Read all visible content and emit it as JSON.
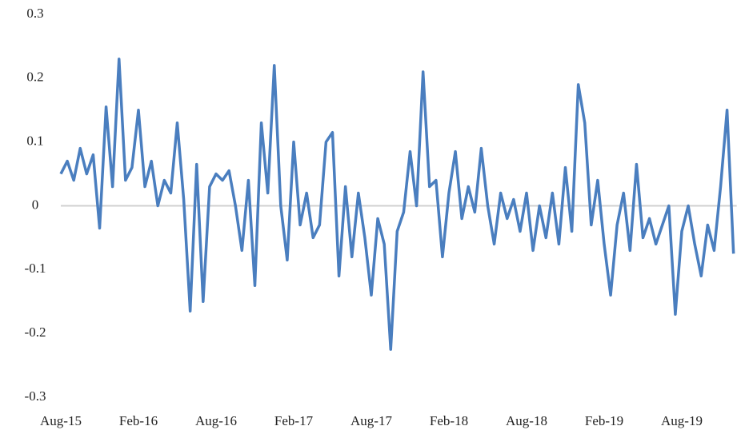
{
  "chart_data": {
    "type": "line",
    "categories": [
      "Aug-15",
      null,
      null,
      null,
      null,
      null,
      null,
      null,
      null,
      null,
      null,
      null,
      "Feb-16",
      null,
      null,
      null,
      null,
      null,
      null,
      null,
      null,
      null,
      null,
      null,
      "Aug-16",
      null,
      null,
      null,
      null,
      null,
      null,
      null,
      null,
      null,
      null,
      null,
      "Feb-17",
      null,
      null,
      null,
      null,
      null,
      null,
      null,
      null,
      null,
      null,
      null,
      "Aug-17",
      null,
      null,
      null,
      null,
      null,
      null,
      null,
      null,
      null,
      null,
      null,
      "Feb-18",
      null,
      null,
      null,
      null,
      null,
      null,
      null,
      null,
      null,
      null,
      null,
      "Aug-18",
      null,
      null,
      null,
      null,
      null,
      null,
      null,
      null,
      null,
      null,
      null,
      "Feb-19",
      null,
      null,
      null,
      null,
      null,
      null,
      null,
      null,
      null,
      null,
      null,
      "Aug-19",
      null,
      null,
      null,
      null,
      null,
      null,
      null,
      null
    ],
    "series": [
      {
        "color": "#4a7ebf",
        "values": [
          0.05,
          0.07,
          0.04,
          0.09,
          0.05,
          0.08,
          -0.035,
          0.155,
          0.03,
          0.23,
          0.04,
          0.06,
          0.15,
          0.03,
          0.07,
          0.0,
          0.04,
          0.02,
          0.13,
          0.01,
          -0.165,
          0.065,
          -0.15,
          0.03,
          0.05,
          0.04,
          0.055,
          0.0,
          -0.07,
          0.04,
          -0.125,
          0.13,
          0.02,
          0.22,
          0.0,
          -0.085,
          0.1,
          -0.03,
          0.02,
          -0.05,
          -0.03,
          0.1,
          0.115,
          -0.11,
          0.03,
          -0.08,
          0.02,
          -0.05,
          -0.14,
          -0.02,
          -0.06,
          -0.225,
          -0.04,
          -0.01,
          0.085,
          0.0,
          0.21,
          0.03,
          0.04,
          -0.08,
          0.02,
          0.085,
          -0.02,
          0.03,
          -0.01,
          0.09,
          0.0,
          -0.06,
          0.02,
          -0.02,
          0.01,
          -0.04,
          0.02,
          -0.07,
          0.0,
          -0.05,
          0.02,
          -0.06,
          0.06,
          -0.04,
          0.19,
          0.13,
          -0.03,
          0.04,
          -0.06,
          -0.14,
          -0.03,
          0.02,
          -0.07,
          0.065,
          -0.05,
          -0.02,
          -0.06,
          -0.03,
          0.0,
          -0.17,
          -0.04,
          0.0,
          -0.06,
          -0.11,
          -0.03,
          -0.07,
          0.03,
          0.15,
          -0.075
        ]
      }
    ],
    "ylim": [
      -0.3,
      0.3
    ],
    "yticks": [
      0.3,
      0.2,
      0.1,
      0,
      -0.1,
      -0.2,
      -0.3
    ],
    "grid": false
  }
}
